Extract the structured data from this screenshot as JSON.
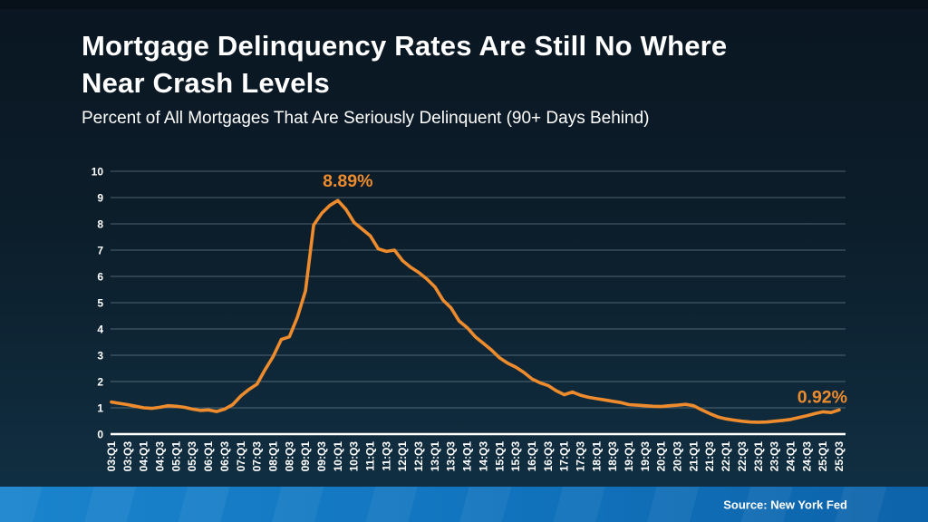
{
  "slide": {
    "title_line1": "Mortgage Delinquency Rates Are Still No Where",
    "title_line2": "Near Crash Levels",
    "subtitle": "Percent of All Mortgages That Are Seriously Delinquent (90+ Days Behind)",
    "source": "Source: New York Fed"
  },
  "colors": {
    "accent_orange": "#ED8B2D",
    "background_top": "#0A1621",
    "background_bottom": "#113145",
    "footer_bar_left": "#1A84CD",
    "footer_bar_right": "#0D63A9",
    "gridline": "rgba(163,181,195,0.45)",
    "axis": "#FFFFFF",
    "text": "#FFFFFF"
  },
  "chart_data": {
    "type": "line",
    "title": "Mortgage Delinquency Rates Are Still No Where Near Crash Levels",
    "subtitle": "Percent of All Mortgages That Are Seriously Delinquent (90+ Days Behind)",
    "xlabel": "",
    "ylabel": "",
    "ylim": [
      0,
      10
    ],
    "yticks": [
      0,
      1,
      2,
      3,
      4,
      5,
      6,
      7,
      8,
      9,
      10
    ],
    "grid": true,
    "legend": "none",
    "line_color": "#ED8B2D",
    "x_tick_labels": [
      "03:Q1",
      "03:Q3",
      "04:Q1",
      "04:Q3",
      "05:Q1",
      "05:Q3",
      "06:Q1",
      "06:Q3",
      "07:Q1",
      "07:Q3",
      "08:Q1",
      "08:Q3",
      "09:Q1",
      "09:Q3",
      "10:Q1",
      "10:Q3",
      "11:Q1",
      "11:Q3",
      "12:Q1",
      "12:Q3",
      "13:Q1",
      "13:Q3",
      "14:Q1",
      "14:Q3",
      "15:Q1",
      "15:Q3",
      "16:Q1",
      "16:Q3",
      "17:Q1",
      "17:Q3",
      "18:Q1",
      "18:Q3",
      "19:Q1",
      "19:Q3",
      "20:Q1",
      "20:Q3",
      "21:Q1",
      "21:Q3",
      "22:Q1",
      "22:Q3",
      "23:Q1",
      "23:Q3",
      "24:Q1",
      "24:Q3",
      "25:Q1",
      "25:Q3"
    ],
    "quarters": [
      "03:Q1",
      "03:Q2",
      "03:Q3",
      "03:Q4",
      "04:Q1",
      "04:Q2",
      "04:Q3",
      "04:Q4",
      "05:Q1",
      "05:Q2",
      "05:Q3",
      "05:Q4",
      "06:Q1",
      "06:Q2",
      "06:Q3",
      "06:Q4",
      "07:Q1",
      "07:Q2",
      "07:Q3",
      "07:Q4",
      "08:Q1",
      "08:Q2",
      "08:Q3",
      "08:Q4",
      "09:Q1",
      "09:Q2",
      "09:Q3",
      "09:Q4",
      "10:Q1",
      "10:Q2",
      "10:Q3",
      "10:Q4",
      "11:Q1",
      "11:Q2",
      "11:Q3",
      "11:Q4",
      "12:Q1",
      "12:Q2",
      "12:Q3",
      "12:Q4",
      "13:Q1",
      "13:Q2",
      "13:Q3",
      "13:Q4",
      "14:Q1",
      "14:Q2",
      "14:Q3",
      "14:Q4",
      "15:Q1",
      "15:Q2",
      "15:Q3",
      "15:Q4",
      "16:Q1",
      "16:Q2",
      "16:Q3",
      "16:Q4",
      "17:Q1",
      "17:Q2",
      "17:Q3",
      "17:Q4",
      "18:Q1",
      "18:Q2",
      "18:Q3",
      "18:Q4",
      "19:Q1",
      "19:Q2",
      "19:Q3",
      "19:Q4",
      "20:Q1",
      "20:Q2",
      "20:Q3",
      "20:Q4",
      "21:Q1",
      "21:Q2",
      "21:Q3",
      "21:Q4",
      "22:Q1",
      "22:Q2",
      "22:Q3",
      "22:Q4",
      "23:Q1",
      "23:Q2",
      "23:Q3",
      "23:Q4",
      "24:Q1",
      "24:Q2",
      "24:Q3",
      "24:Q4",
      "25:Q1",
      "25:Q2",
      "25:Q3"
    ],
    "values": [
      1.22,
      1.17,
      1.12,
      1.06,
      1.0,
      0.98,
      1.02,
      1.08,
      1.06,
      1.02,
      0.95,
      0.9,
      0.92,
      0.86,
      0.95,
      1.12,
      1.45,
      1.7,
      1.9,
      2.45,
      2.95,
      3.6,
      3.7,
      4.45,
      5.45,
      7.95,
      8.4,
      8.7,
      8.89,
      8.55,
      8.05,
      7.8,
      7.55,
      7.05,
      6.95,
      7.0,
      6.6,
      6.35,
      6.15,
      5.9,
      5.6,
      5.1,
      4.8,
      4.3,
      4.05,
      3.7,
      3.45,
      3.2,
      2.9,
      2.7,
      2.55,
      2.35,
      2.1,
      1.95,
      1.85,
      1.65,
      1.5,
      1.6,
      1.48,
      1.4,
      1.35,
      1.3,
      1.25,
      1.2,
      1.12,
      1.1,
      1.08,
      1.06,
      1.05,
      1.08,
      1.1,
      1.13,
      1.08,
      0.92,
      0.78,
      0.65,
      0.58,
      0.53,
      0.49,
      0.46,
      0.45,
      0.46,
      0.49,
      0.52,
      0.56,
      0.63,
      0.7,
      0.78,
      0.85,
      0.82,
      0.92
    ],
    "peak_annotation": {
      "label": "8.89%",
      "quarter": "10:Q1",
      "value": 8.89
    },
    "end_annotation": {
      "label": "0.92%",
      "quarter": "25:Q3",
      "value": 0.92
    }
  }
}
